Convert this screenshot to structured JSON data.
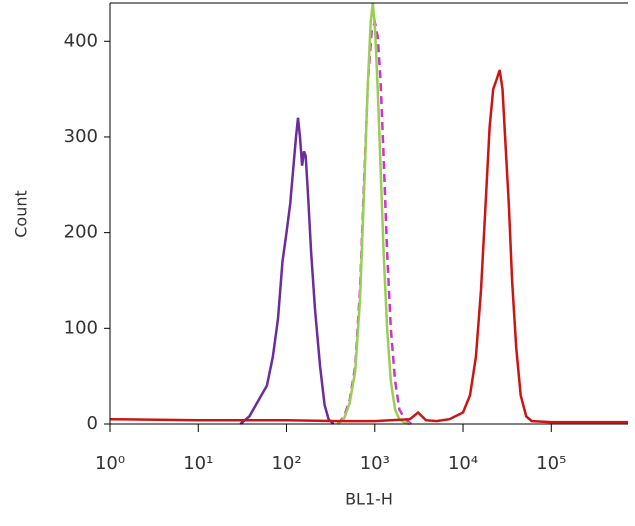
{
  "chart_data": {
    "type": "line",
    "xlabel": "BL1-H",
    "ylabel": "Count",
    "log_x": true,
    "xlim": [
      1,
      740000
    ],
    "ylim": [
      0,
      440
    ],
    "xticks": [
      {
        "value": 1,
        "label": "10⁰"
      },
      {
        "value": 10,
        "label": "10¹"
      },
      {
        "value": 100,
        "label": "10²"
      },
      {
        "value": 1000,
        "label": "10³"
      },
      {
        "value": 10000,
        "label": "10⁴"
      },
      {
        "value": 100000,
        "label": "10⁵"
      }
    ],
    "yticks": [
      0,
      100,
      200,
      300,
      400
    ],
    "series": [
      {
        "color": "#6a2c9e",
        "dash": false,
        "x": [
          30,
          38,
          45,
          52,
          60,
          70,
          80,
          90,
          100,
          110,
          120,
          128,
          135,
          142,
          150,
          158,
          165,
          175,
          190,
          210,
          240,
          270,
          300,
          340
        ],
        "values": [
          0,
          8,
          20,
          30,
          40,
          70,
          110,
          170,
          200,
          230,
          270,
          300,
          320,
          300,
          270,
          285,
          280,
          240,
          180,
          120,
          60,
          20,
          5,
          0
        ]
      },
      {
        "color": "#cc33cc",
        "dash": true,
        "x": [
          380,
          450,
          520,
          600,
          680,
          760,
          840,
          920,
          1000,
          1080,
          1160,
          1260,
          1380,
          1520,
          1700,
          1900,
          2200,
          2600
        ],
        "values": [
          0,
          8,
          25,
          60,
          140,
          260,
          360,
          410,
          420,
          405,
          360,
          280,
          180,
          100,
          45,
          15,
          5,
          0
        ]
      },
      {
        "color": "#9acd55",
        "dash": false,
        "x": [
          380,
          450,
          520,
          600,
          680,
          760,
          830,
          900,
          950,
          1010,
          1080,
          1160,
          1260,
          1380,
          1520,
          1700,
          1900,
          2200,
          2500
        ],
        "values": [
          0,
          6,
          22,
          55,
          130,
          250,
          350,
          420,
          440,
          410,
          350,
          270,
          180,
          100,
          45,
          15,
          5,
          1,
          0
        ]
      },
      {
        "color": "#cc1414",
        "dash": false,
        "x": [
          1,
          10,
          100,
          400,
          1000,
          2500,
          3100,
          3800,
          5000,
          7000,
          10000,
          12000,
          14000,
          16000,
          18000,
          20000,
          22000,
          24000,
          26000,
          28000,
          30000,
          33000,
          36000,
          40000,
          45000,
          52000,
          60000,
          100000,
          740000
        ],
        "values": [
          5,
          4,
          4,
          3,
          3,
          5,
          12,
          4,
          3,
          5,
          12,
          30,
          70,
          140,
          230,
          310,
          350,
          360,
          370,
          350,
          300,
          230,
          150,
          80,
          30,
          8,
          3,
          2,
          2
        ]
      }
    ]
  }
}
